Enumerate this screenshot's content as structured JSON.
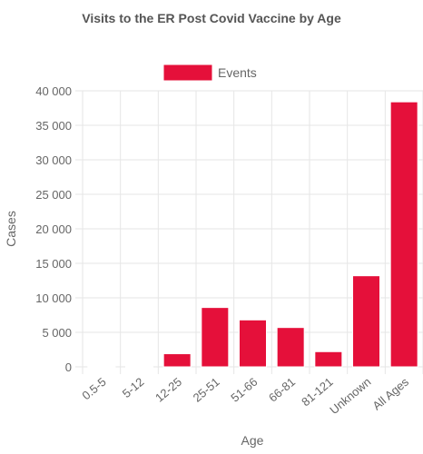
{
  "chart_data": {
    "type": "bar",
    "title": "Visits to the ER Post Covid Vaccine by Age",
    "xlabel": "Age",
    "ylabel": "Cases",
    "categories": [
      "0.5-5",
      "5-12",
      "12-25",
      "25-51",
      "51-66",
      "66-81",
      "81-121",
      "Unknown",
      "All Ages"
    ],
    "series": [
      {
        "name": "Events",
        "values": [
          100,
          30,
          1900,
          8600,
          6800,
          5700,
          2200,
          13200,
          38400
        ]
      }
    ],
    "ylim": [
      0,
      40000
    ],
    "yticks": [
      0,
      5000,
      10000,
      15000,
      20000,
      25000,
      30000,
      35000,
      40000
    ],
    "ytick_labels": [
      "0",
      "5 000",
      "10 000",
      "15 000",
      "20 000",
      "25 000",
      "30 000",
      "35 000",
      "40 000"
    ],
    "grid": true,
    "legend_position": "top",
    "colors": {
      "bar_fill": "#e5103a",
      "bar_stroke": "#ffffff"
    }
  }
}
